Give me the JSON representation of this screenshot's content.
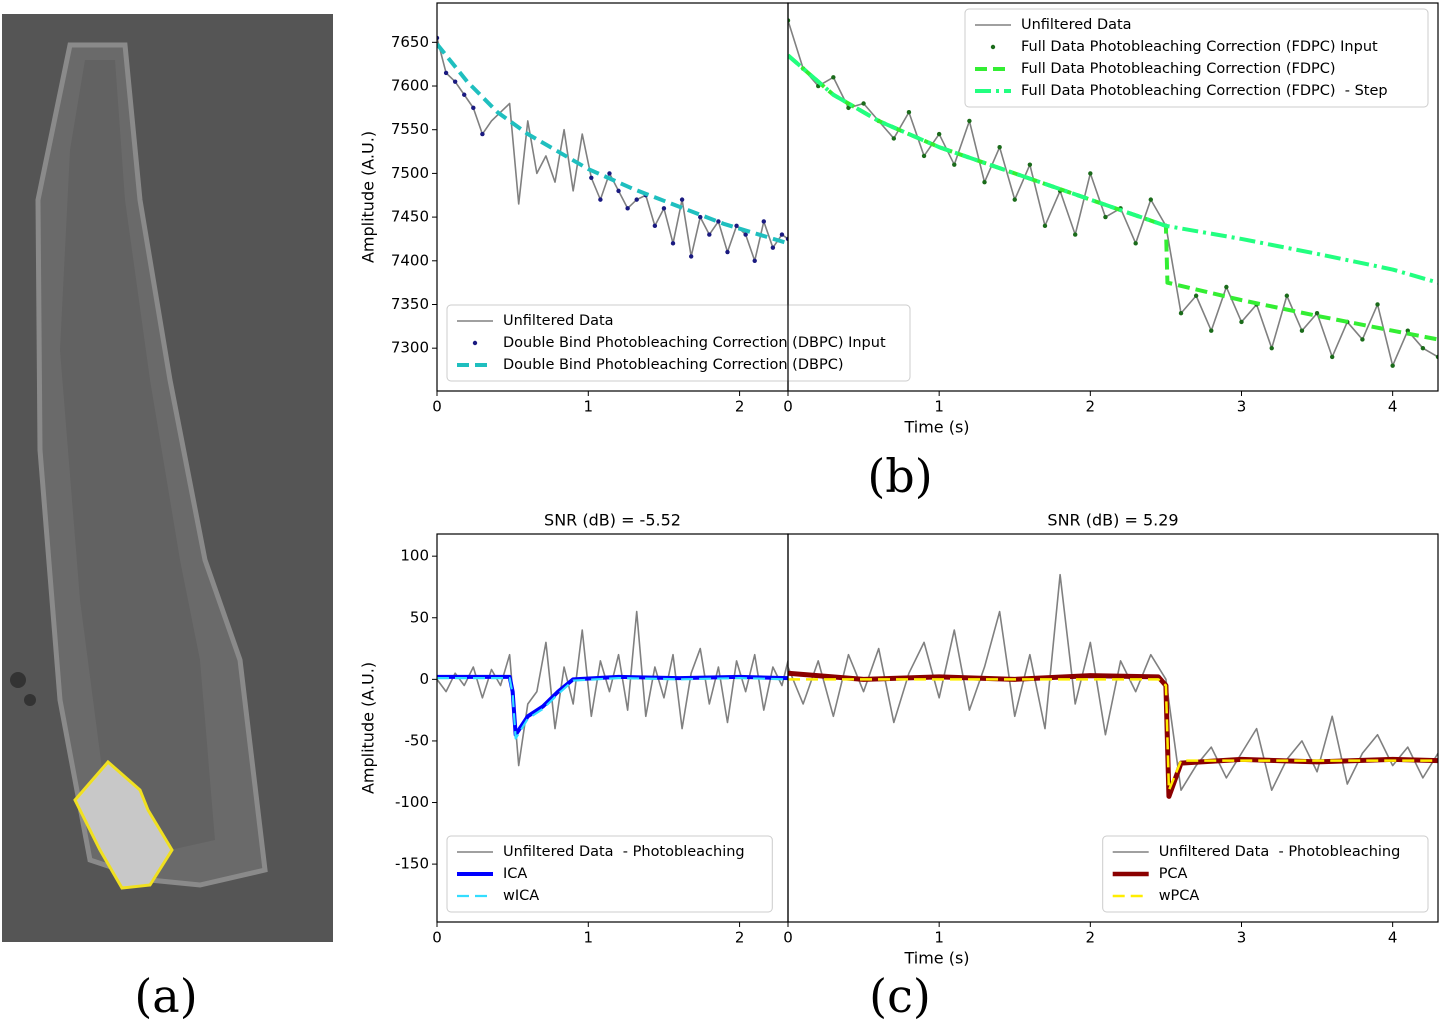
{
  "panel_labels": {
    "a": "(a)",
    "b": "(b)",
    "c": "(c)"
  },
  "chart_data": [
    {
      "type": "line",
      "ylabel": "Amplitude (A.U.)",
      "xlim": [
        0,
        2.32
      ],
      "xticks": [
        0,
        1,
        2
      ],
      "ylim": [
        7251,
        7695
      ],
      "yticks": [
        7300,
        7350,
        7400,
        7450,
        7500,
        7550,
        7600,
        7650
      ],
      "legend": "lower left",
      "series": [
        {
          "name": "Unfiltered Data",
          "color": "#808080",
          "style": "solid",
          "width": 1.6,
          "x": [
            0,
            0.06,
            0.12,
            0.18,
            0.24,
            0.3,
            0.36,
            0.42,
            0.48,
            0.54,
            0.6,
            0.66,
            0.72,
            0.78,
            0.84,
            0.9,
            0.96,
            1.02,
            1.08,
            1.14,
            1.2,
            1.26,
            1.32,
            1.38,
            1.44,
            1.5,
            1.56,
            1.62,
            1.68,
            1.74,
            1.8,
            1.86,
            1.92,
            1.98,
            2.04,
            2.1,
            2.16,
            2.22,
            2.28,
            2.32
          ],
          "values": [
            7655,
            7615,
            7605,
            7590,
            7575,
            7545,
            7560,
            7570,
            7580,
            7465,
            7560,
            7500,
            7520,
            7490,
            7550,
            7480,
            7545,
            7495,
            7470,
            7500,
            7480,
            7460,
            7470,
            7475,
            7440,
            7460,
            7420,
            7470,
            7405,
            7450,
            7430,
            7445,
            7410,
            7440,
            7430,
            7400,
            7445,
            7415,
            7430,
            7425
          ]
        },
        {
          "name": "Double Bind Photobleaching Correction (DBPC) Input",
          "color": "#1a1a80",
          "style": "dots",
          "width": 2.2,
          "x": [
            0,
            0.06,
            0.12,
            0.18,
            0.24,
            0.3,
            1.02,
            1.08,
            1.14,
            1.2,
            1.26,
            1.32,
            1.38,
            1.44,
            1.5,
            1.56,
            1.62,
            1.68,
            1.74,
            1.8,
            1.86,
            1.92,
            1.98,
            2.04,
            2.1,
            2.16,
            2.22,
            2.28,
            2.32
          ],
          "values": [
            7655,
            7615,
            7605,
            7590,
            7575,
            7545,
            7495,
            7470,
            7500,
            7480,
            7460,
            7470,
            7475,
            7440,
            7460,
            7420,
            7470,
            7405,
            7450,
            7430,
            7445,
            7410,
            7440,
            7430,
            7400,
            7445,
            7415,
            7430,
            7425
          ]
        },
        {
          "name": "Double Bind Photobleaching Correction (DBPC)",
          "color": "#1fbfbf",
          "style": "dashed",
          "width": 4,
          "x": [
            0,
            0.2,
            0.4,
            0.6,
            0.8,
            1.0,
            1.3,
            1.6,
            1.9,
            2.32
          ],
          "values": [
            7648,
            7605,
            7570,
            7545,
            7525,
            7505,
            7482,
            7462,
            7442,
            7420
          ]
        }
      ]
    },
    {
      "type": "line",
      "xlabel": "Time (s)",
      "xlim": [
        0,
        4.3
      ],
      "xticks": [
        0,
        1,
        2,
        3,
        4
      ],
      "ylim": [
        7251,
        7695
      ],
      "legend": "upper right",
      "series": [
        {
          "name": "Unfiltered Data",
          "color": "#808080",
          "style": "solid",
          "width": 1.6,
          "x": [
            0,
            0.1,
            0.2,
            0.3,
            0.4,
            0.5,
            0.6,
            0.7,
            0.8,
            0.9,
            1.0,
            1.1,
            1.2,
            1.3,
            1.4,
            1.5,
            1.6,
            1.7,
            1.8,
            1.9,
            2.0,
            2.1,
            2.2,
            2.3,
            2.4,
            2.5,
            2.6,
            2.7,
            2.8,
            2.9,
            3.0,
            3.1,
            3.2,
            3.3,
            3.4,
            3.5,
            3.6,
            3.7,
            3.8,
            3.9,
            4.0,
            4.1,
            4.2,
            4.3
          ],
          "values": [
            7675,
            7620,
            7600,
            7610,
            7575,
            7580,
            7560,
            7540,
            7570,
            7520,
            7545,
            7510,
            7560,
            7490,
            7530,
            7470,
            7510,
            7440,
            7480,
            7430,
            7500,
            7450,
            7460,
            7420,
            7470,
            7440,
            7340,
            7360,
            7320,
            7370,
            7330,
            7350,
            7300,
            7360,
            7320,
            7340,
            7290,
            7330,
            7310,
            7350,
            7280,
            7320,
            7300,
            7290
          ]
        },
        {
          "name": "Full Data Photobleaching Correction (FDPC) Input",
          "color": "#1a6b1a",
          "style": "dots",
          "width": 2.2,
          "x": [
            0,
            0.1,
            0.2,
            0.3,
            0.4,
            0.5,
            0.6,
            0.7,
            0.8,
            0.9,
            1.0,
            1.1,
            1.2,
            1.3,
            1.4,
            1.5,
            1.6,
            1.7,
            1.8,
            1.9,
            2.0,
            2.1,
            2.2,
            2.3,
            2.4,
            2.5,
            2.6,
            2.7,
            2.8,
            2.9,
            3.0,
            3.1,
            3.2,
            3.3,
            3.4,
            3.5,
            3.6,
            3.7,
            3.8,
            3.9,
            4.0,
            4.1,
            4.2,
            4.3
          ],
          "values": [
            7675,
            7620,
            7600,
            7610,
            7575,
            7580,
            7560,
            7540,
            7570,
            7520,
            7545,
            7510,
            7560,
            7490,
            7530,
            7470,
            7510,
            7440,
            7480,
            7430,
            7500,
            7450,
            7460,
            7420,
            7470,
            7440,
            7340,
            7360,
            7320,
            7370,
            7330,
            7350,
            7300,
            7360,
            7320,
            7340,
            7290,
            7330,
            7310,
            7350,
            7280,
            7320,
            7300,
            7290
          ]
        },
        {
          "name": "Full Data Photobleaching Correction (FDPC)",
          "color": "#33ee33",
          "style": "dashed",
          "width": 4,
          "x": [
            0,
            0.3,
            0.6,
            1.0,
            1.5,
            2.0,
            2.5,
            2.51,
            3.0,
            3.5,
            4.0,
            4.3
          ],
          "values": [
            7635,
            7590,
            7560,
            7530,
            7500,
            7470,
            7440,
            7375,
            7355,
            7337,
            7320,
            7310
          ]
        },
        {
          "name": "Full Data Photobleaching Correction (FDPC)  - Step",
          "color": "#22ff80",
          "style": "dashdot",
          "width": 4,
          "x": [
            0,
            0.3,
            0.6,
            1.0,
            1.5,
            2.0,
            2.5,
            3.0,
            3.5,
            4.0,
            4.3
          ],
          "values": [
            7635,
            7590,
            7560,
            7530,
            7500,
            7470,
            7440,
            7425,
            7408,
            7390,
            7375
          ]
        }
      ]
    },
    {
      "type": "line",
      "title": "SNR (dB) = -5.52",
      "ylabel": "Amplitude (A.U.)",
      "xlim": [
        0,
        2.32
      ],
      "xticks": [
        0,
        1,
        2
      ],
      "ylim": [
        -197,
        118
      ],
      "yticks": [
        -150,
        -100,
        -50,
        0,
        50,
        100
      ],
      "legend": "lower left",
      "series": [
        {
          "name": "Unfiltered Data  - Photobleaching",
          "color": "#808080",
          "style": "solid",
          "width": 1.6,
          "x": [
            0,
            0.06,
            0.12,
            0.18,
            0.24,
            0.3,
            0.36,
            0.42,
            0.48,
            0.54,
            0.6,
            0.66,
            0.72,
            0.78,
            0.84,
            0.9,
            0.96,
            1.02,
            1.08,
            1.14,
            1.2,
            1.26,
            1.32,
            1.38,
            1.44,
            1.5,
            1.56,
            1.62,
            1.68,
            1.74,
            1.8,
            1.86,
            1.92,
            1.98,
            2.04,
            2.1,
            2.16,
            2.22,
            2.28,
            2.32
          ],
          "values": [
            0,
            -10,
            5,
            -5,
            10,
            -15,
            8,
            -5,
            20,
            -70,
            -20,
            -10,
            30,
            -40,
            10,
            -20,
            40,
            -30,
            15,
            -10,
            20,
            -25,
            55,
            -30,
            10,
            -15,
            20,
            -40,
            5,
            25,
            -20,
            10,
            -35,
            15,
            -10,
            20,
            -25,
            10,
            -5,
            15
          ]
        },
        {
          "name": "ICA",
          "color": "#0000ff",
          "style": "solid",
          "width": 4,
          "x": [
            0,
            0.3,
            0.48,
            0.5,
            0.52,
            0.6,
            0.7,
            0.8,
            0.9,
            1.2,
            1.6,
            2.0,
            2.32
          ],
          "values": [
            2,
            2,
            2,
            -10,
            -45,
            -30,
            -22,
            -10,
            0,
            2,
            1,
            2,
            1
          ]
        },
        {
          "name": "wICA",
          "color": "#33ddff",
          "style": "dashed",
          "width": 2.2,
          "x": [
            0,
            0.3,
            0.48,
            0.5,
            0.52,
            0.6,
            0.7,
            0.8,
            0.9,
            1.2,
            1.6,
            2.0,
            2.32
          ],
          "values": [
            1,
            1,
            1,
            -12,
            -48,
            -32,
            -24,
            -12,
            -1,
            1,
            0,
            1,
            0
          ]
        }
      ]
    },
    {
      "type": "line",
      "title": "SNR (dB) = 5.29",
      "xlabel": "Time (s)",
      "xlim": [
        0,
        4.3
      ],
      "xticks": [
        0,
        1,
        2,
        3,
        4
      ],
      "ylim": [
        -197,
        118
      ],
      "legend": "lower right",
      "series": [
        {
          "name": "Unfiltered Data  - Photobleaching",
          "color": "#808080",
          "style": "solid",
          "width": 1.6,
          "x": [
            0,
            0.1,
            0.2,
            0.3,
            0.4,
            0.5,
            0.6,
            0.7,
            0.8,
            0.9,
            1.0,
            1.1,
            1.2,
            1.3,
            1.4,
            1.5,
            1.6,
            1.7,
            1.8,
            1.9,
            2.0,
            2.1,
            2.2,
            2.3,
            2.4,
            2.5,
            2.6,
            2.7,
            2.8,
            2.9,
            3.0,
            3.1,
            3.2,
            3.3,
            3.4,
            3.5,
            3.6,
            3.7,
            3.8,
            3.9,
            4.0,
            4.1,
            4.2,
            4.3
          ],
          "values": [
            10,
            -20,
            15,
            -30,
            20,
            -10,
            25,
            -35,
            5,
            30,
            -15,
            40,
            -25,
            10,
            55,
            -30,
            20,
            -40,
            85,
            -20,
            30,
            -45,
            15,
            -10,
            20,
            0,
            -90,
            -70,
            -55,
            -80,
            -60,
            -40,
            -90,
            -65,
            -50,
            -75,
            -30,
            -85,
            -60,
            -45,
            -70,
            -55,
            -80,
            -60
          ]
        },
        {
          "name": "PCA",
          "color": "#8b0000",
          "style": "solid",
          "width": 5,
          "x": [
            0,
            0.5,
            1.0,
            1.5,
            2.0,
            2.45,
            2.5,
            2.52,
            2.6,
            3.0,
            3.5,
            4.0,
            4.3
          ],
          "values": [
            5,
            0,
            2,
            0,
            3,
            2,
            -5,
            -95,
            -68,
            -65,
            -67,
            -65,
            -66
          ]
        },
        {
          "name": "wPCA",
          "color": "#ffee00",
          "style": "dashed",
          "width": 2.5,
          "x": [
            0,
            0.5,
            1.0,
            1.5,
            2.0,
            2.45,
            2.5,
            2.52,
            2.6,
            3.0,
            3.5,
            4.0,
            4.3
          ],
          "values": [
            0,
            0,
            0,
            0,
            0,
            0,
            -5,
            -90,
            -66,
            -66,
            -66,
            -66,
            -66
          ]
        }
      ]
    }
  ]
}
